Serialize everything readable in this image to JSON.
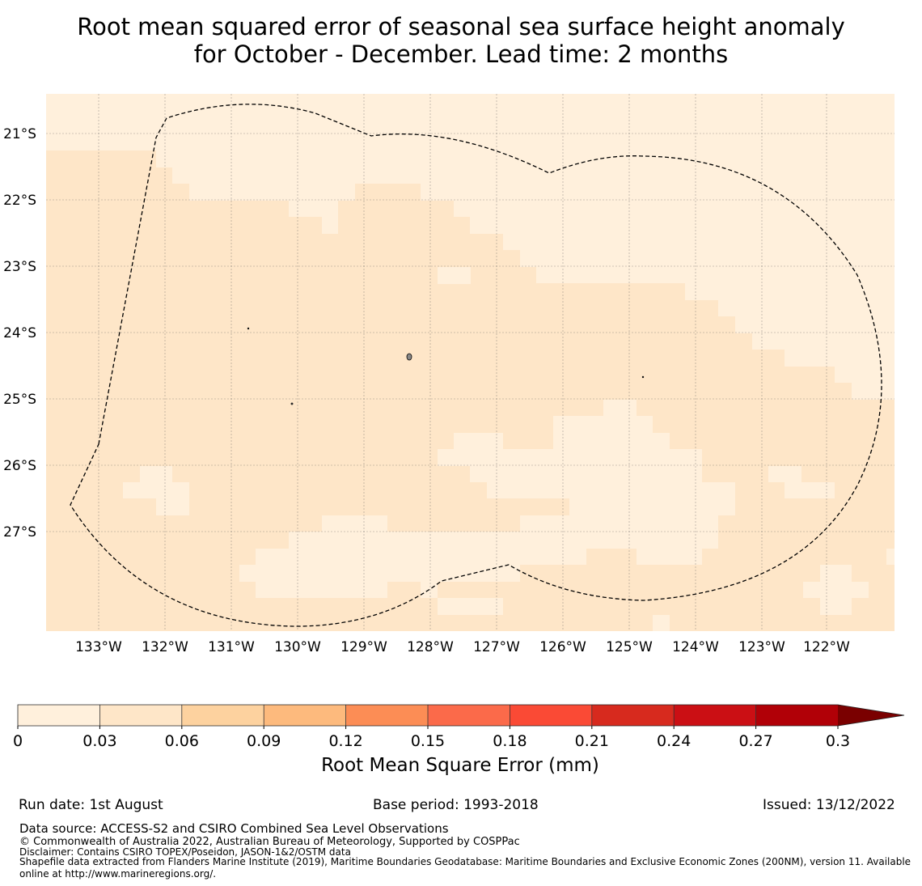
{
  "title_line1": "Root mean squared error of seasonal sea surface height anomaly",
  "title_line2": "for October - December. Lead time: 2 months",
  "chart_data": {
    "type": "heatmap",
    "map_extent": {
      "lon": [
        -133.8,
        -121.0
      ],
      "lat": [
        -28.5,
        -20.4
      ]
    },
    "lat_ticks": [
      "21°S",
      "22°S",
      "23°S",
      "24°S",
      "25°S",
      "26°S",
      "27°S"
    ],
    "lon_ticks": [
      "133°W",
      "132°W",
      "131°W",
      "130°W",
      "129°W",
      "128°W",
      "127°W",
      "126°W",
      "125°W",
      "124°W",
      "123°W",
      "122°W"
    ],
    "grid": true,
    "colorbar": {
      "label": "Root Mean Square Error (mm)",
      "ticks": [
        "0",
        "0.03",
        "0.06",
        "0.09",
        "0.12",
        "0.15",
        "0.18",
        "0.21",
        "0.24",
        "0.27",
        "0.3"
      ],
      "colors": [
        "#fff0dc",
        "#fee6c8",
        "#fdd29f",
        "#fdba7d",
        "#fc8d55",
        "#fb6a4a",
        "#fa4a35",
        "#d72a1e",
        "#cb0f14",
        "#b10007"
      ],
      "extend_color": "#7a0000",
      "extend": "max"
    },
    "field_levels": [
      "0-0.03",
      "0.03-0.06"
    ],
    "region_outline": "Pitcairn Islands EEZ (dashed)"
  },
  "footer": {
    "run_date": "Run date: 1st August",
    "base_period": "Base period: 1993-2018",
    "issued": "Issued: 13/12/2022",
    "data_source": "Data source: ACCESS-S2 and CSIRO Combined Sea Level Observations",
    "copyright": "© Commonwealth of Australia 2022, Australian Bureau of Meteorology, Supported by COSPPac",
    "disclaimer": "Disclaimer: Contains CSIRO TOPEX/Poseidon, JASON-1&2/OSTM data",
    "shapefile1": "Shapefile data extracted from Flanders Marine Institute (2019), Maritime Boundaries Geodatabase: Maritime Boundaries and Exclusive Economic Zones (200NM), version 11. Available",
    "shapefile2": "online at http://www.marineregions.org/."
  }
}
